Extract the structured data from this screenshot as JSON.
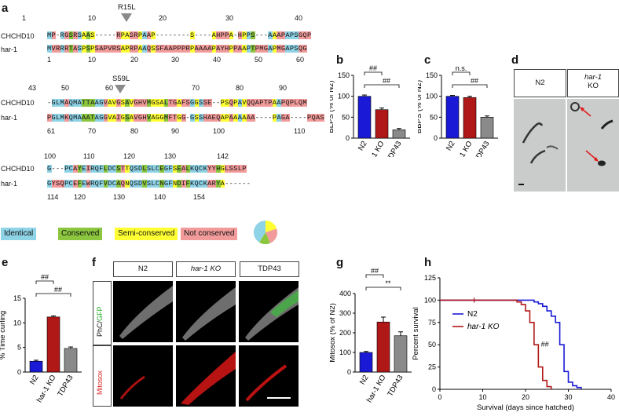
{
  "panels": {
    "a": "a",
    "b": "b",
    "c": "c",
    "d": "d",
    "e": "e",
    "f": "f",
    "g": "g",
    "h": "h"
  },
  "alignment": {
    "block1": {
      "top_numbers": [
        "1",
        "10",
        "20",
        "30",
        "40"
      ],
      "bottom_numbers": [
        "1",
        "10",
        "20",
        "30",
        "40",
        "50",
        "60"
      ],
      "mutation": "R15L",
      "chchd10": "MP-RGSRSAAS-----RPASRPAAP--------S----AHPPA-HPPS---AAAPAPSGQP",
      "har1": "MVRRRTASPSPSAPVRSAPRPAAQSSFAAPPPRPAAAAPAYHPPAAPTPMGAPMGAPSQG"
    },
    "block2": {
      "top_numbers": [
        "43",
        "50",
        "60",
        "70",
        "80",
        "90"
      ],
      "bottom_numbers": [
        "61",
        "70",
        "80",
        "90",
        "100",
        "110"
      ],
      "mutation": "S59L",
      "chchd10": "-GLMAQMATTAAGVAVGSAVGHVMGSALTGAFSGGSSE--PSQPAVQQAPTPAAPQPLQM",
      "har1": "PGLMKQMAAATAGGVAIGSAVGHVAGGMFTGG-GSSHAEQAPAAAAAA----PAGA----PQAS"
    },
    "block3": {
      "top_numbers": [
        "100",
        "110",
        "120",
        "130",
        "142"
      ],
      "bottom_numbers": [
        "114",
        "120",
        "130",
        "140",
        "154"
      ],
      "chchd10": "G---PCAYEIRQFLDCSTTQSDLSLCEGFSEALKQCKYYHGLSSLP",
      "har1": "GYSQPCEFEWRQFVDCAQNQSDVSLCNGFNDIFKQCKARYA------"
    },
    "names": {
      "chchd10": "CHCHD10",
      "har1": "har-1"
    }
  },
  "legend": {
    "identical": "Identical",
    "conserved": "Conserved",
    "semi": "Semi-conserved",
    "not": "Not conserved"
  },
  "colors": {
    "identical": "#8fd3e6",
    "conserved": "#8cc63f",
    "semi": "#ffff33",
    "not": "#f29b9b",
    "blue": "#1a1ad6",
    "red": "#b01818",
    "gray": "#8a8a8a"
  },
  "chart_data": [
    {
      "id": "b",
      "type": "bar",
      "ylabel": "BLPS (% of N2)",
      "categories": [
        "N2",
        "har-1 KO",
        "TDP43"
      ],
      "values": [
        100,
        68,
        20
      ],
      "errors": [
        3,
        4,
        3
      ],
      "ylim": [
        0,
        150
      ],
      "yticks": [
        "0",
        "50",
        "100",
        "150"
      ],
      "sig": [
        "##",
        "##"
      ]
    },
    {
      "id": "c",
      "type": "bar",
      "ylabel": "BBPS (% of N2)",
      "categories": [
        "N2",
        "har-1 KO",
        "TDP43"
      ],
      "values": [
        100,
        97,
        50
      ],
      "errors": [
        2,
        3,
        3
      ],
      "ylim": [
        0,
        150
      ],
      "yticks": [
        "0",
        "50",
        "100",
        "150"
      ],
      "sig": [
        "n.s.",
        "##"
      ]
    },
    {
      "id": "e",
      "type": "bar",
      "ylabel": "% Time curling",
      "categories": [
        "N2",
        "har-1 KO",
        "TDP43"
      ],
      "values": [
        2.2,
        11.2,
        4.8
      ],
      "errors": [
        0.2,
        0.2,
        0.3
      ],
      "ylim": [
        0,
        15
      ],
      "yticks": [
        "0",
        "5",
        "10",
        "15"
      ],
      "sig": [
        "##",
        "##"
      ]
    },
    {
      "id": "g",
      "type": "bar",
      "ylabel": "Mitosox (% of N2)",
      "categories": [
        "N2",
        "har-1 KO",
        "TDP43"
      ],
      "values": [
        100,
        255,
        185
      ],
      "errors": [
        5,
        25,
        20
      ],
      "ylim": [
        0,
        400
      ],
      "yticks": [
        "0",
        "100",
        "200",
        "300",
        "400"
      ],
      "sig": [
        "##",
        "**"
      ]
    },
    {
      "id": "h",
      "type": "line",
      "ylabel": "Percent survival",
      "xlabel": "Survival (days since hatched)",
      "xlim": [
        0,
        40
      ],
      "ylim": [
        0,
        125
      ],
      "xticks": [
        "0",
        "10",
        "20",
        "30",
        "40"
      ],
      "yticks": [
        "0",
        "25",
        "50",
        "75",
        "100",
        "125"
      ],
      "series": [
        {
          "name": "N2",
          "x": [
            0,
            21,
            22,
            23,
            24,
            25,
            26,
            27,
            28,
            29,
            30,
            31,
            32,
            33
          ],
          "y": [
            100,
            100,
            98,
            96,
            93,
            88,
            82,
            75,
            50,
            20,
            8,
            4,
            2,
            0
          ]
        },
        {
          "name": "har-1 KO",
          "x": [
            0,
            17,
            18,
            19,
            20,
            21,
            22,
            23,
            24,
            25,
            26
          ],
          "y": [
            100,
            100,
            98,
            95,
            88,
            75,
            50,
            25,
            10,
            3,
            0
          ]
        }
      ],
      "annotation": "##"
    }
  ],
  "panel_d": {
    "left": "N2",
    "right_italic": "har-1",
    "right_sub": "KO"
  },
  "panel_f": {
    "cols": [
      "N2",
      "har-1 KO",
      "TDP43"
    ],
    "row1_label_a": "PhC/",
    "row1_label_b": "GFP",
    "row2_label": "Mitosox"
  }
}
